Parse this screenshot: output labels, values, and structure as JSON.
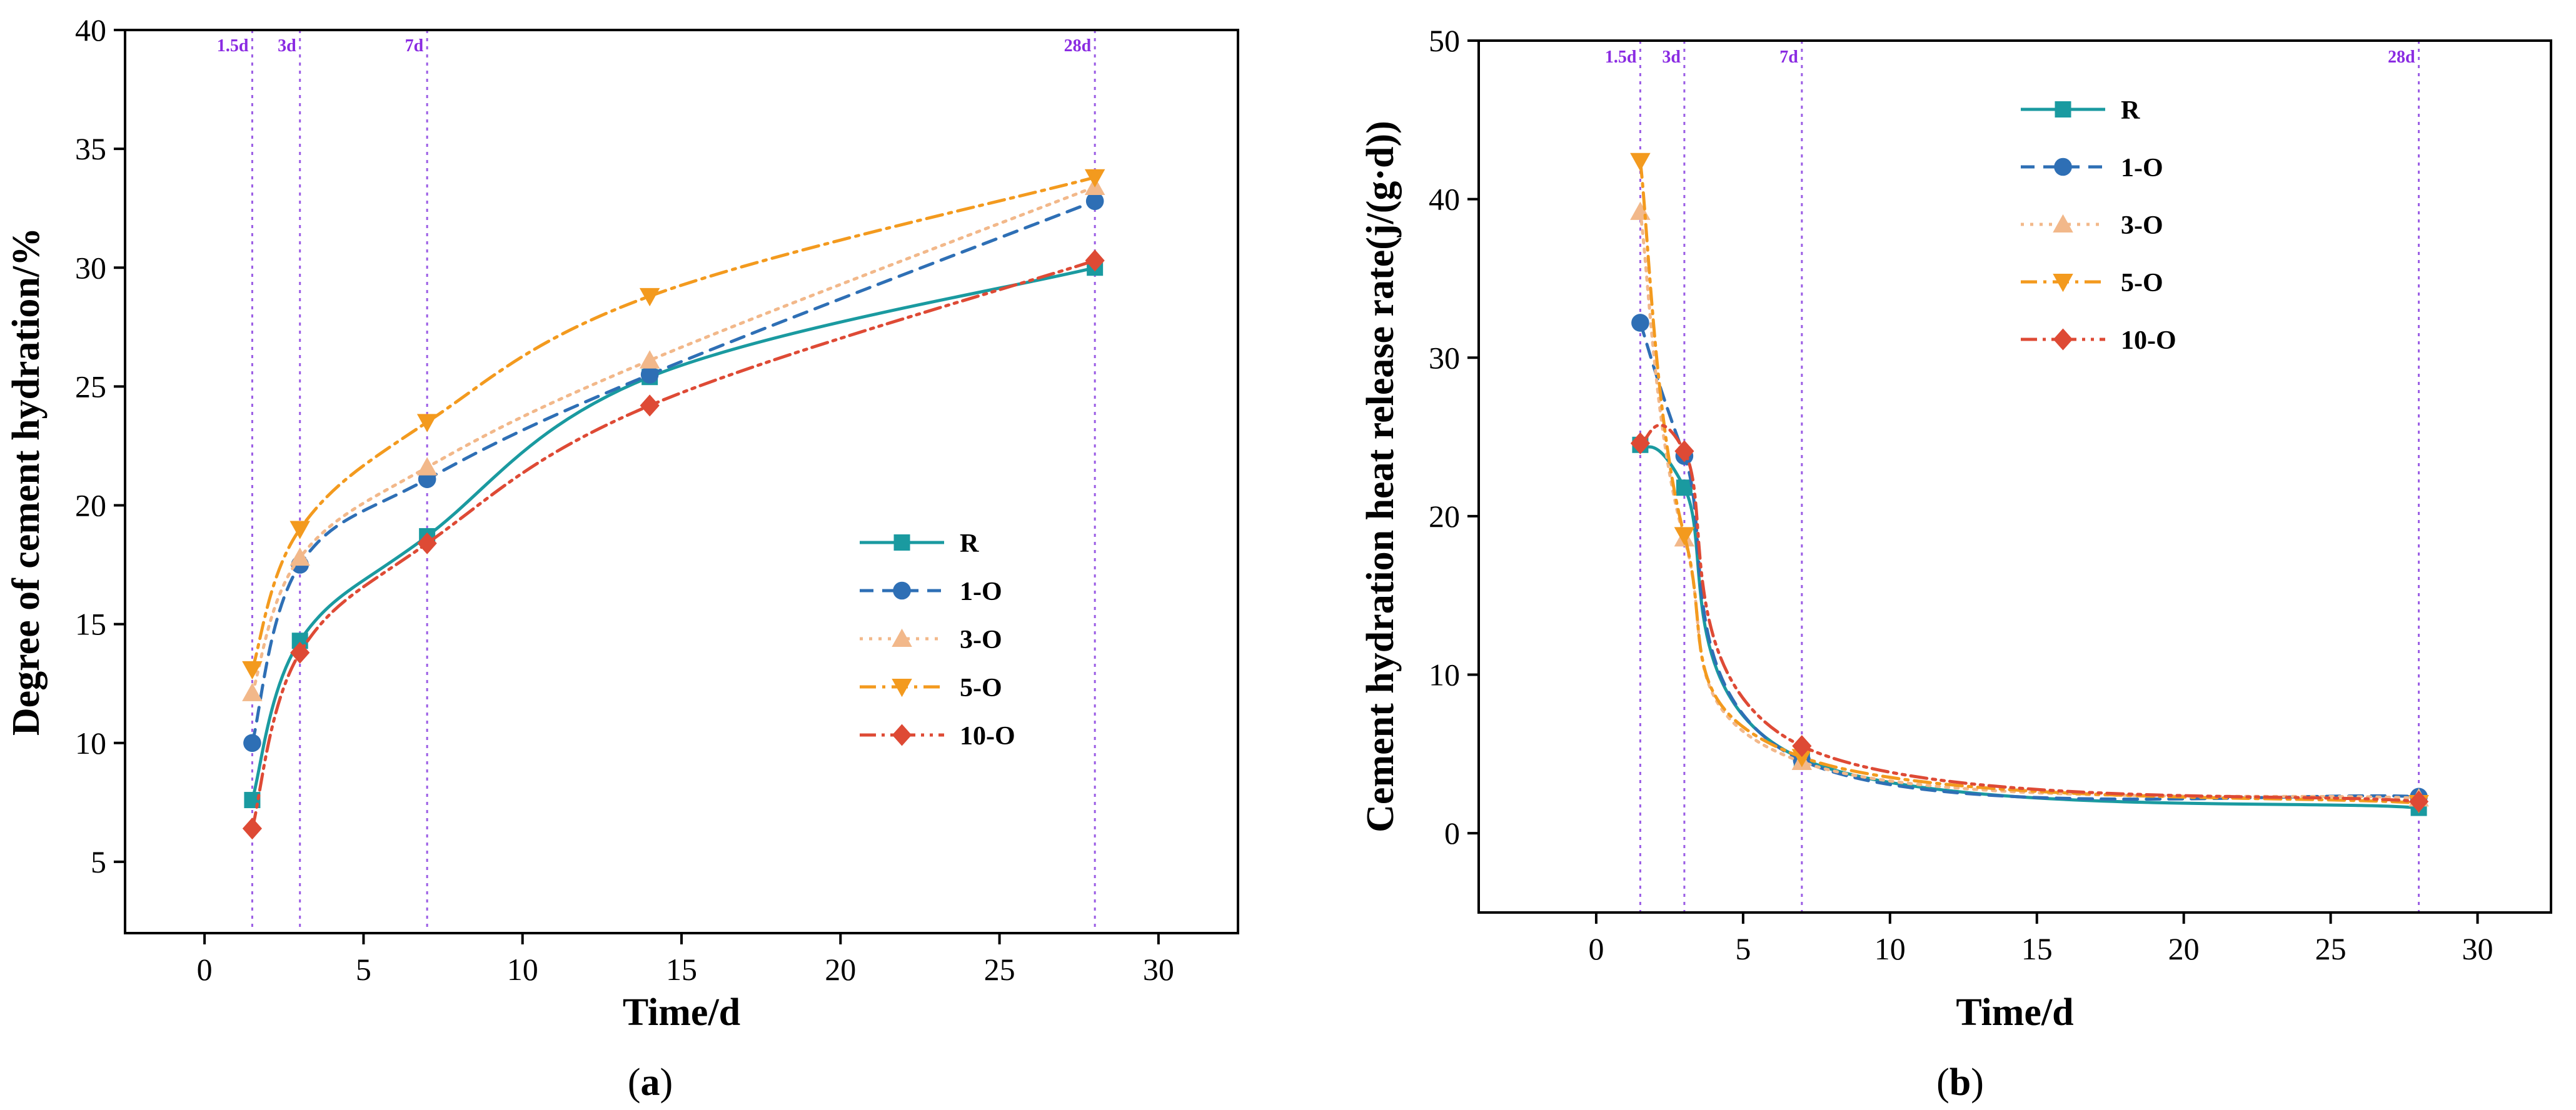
{
  "chart_data": [
    {
      "type": "line",
      "panel_label": "(a)",
      "panel_letter": "a",
      "title": "",
      "xlabel": "Time/d",
      "ylabel": "Degree of cement hydration/%",
      "xlim": [
        -2.5,
        32.5
      ],
      "ylim": [
        2,
        40
      ],
      "xticks": [
        0,
        5,
        10,
        15,
        20,
        25,
        30
      ],
      "yticks": [
        5,
        10,
        15,
        20,
        25,
        30,
        35,
        40
      ],
      "reference_lines": [
        {
          "x": 1.5,
          "label": "1.5d"
        },
        {
          "x": 3,
          "label": "3d"
        },
        {
          "x": 7,
          "label": "7d"
        },
        {
          "x": 28,
          "label": "28d"
        }
      ],
      "legend_position": "center-right",
      "x": [
        1.5,
        3,
        7,
        14,
        28
      ],
      "series": [
        {
          "name": "R",
          "color": "#1a9aa0",
          "marker": "square",
          "dash": "solid",
          "values": [
            7.6,
            14.3,
            18.7,
            25.4,
            30.0
          ]
        },
        {
          "name": "1-O",
          "color": "#2e6fb5",
          "marker": "circle",
          "dash": "dashed",
          "values": [
            10.0,
            17.5,
            21.1,
            25.5,
            32.8
          ]
        },
        {
          "name": "3-O",
          "color": "#f2b88a",
          "marker": "triangle-up",
          "dash": "dotted",
          "values": [
            12.1,
            17.8,
            21.6,
            26.1,
            33.4
          ]
        },
        {
          "name": "5-O",
          "color": "#f39a1e",
          "marker": "triangle-down",
          "dash": "dashdot",
          "values": [
            13.1,
            19.0,
            23.5,
            28.8,
            33.8
          ]
        },
        {
          "name": "10-O",
          "color": "#de4a35",
          "marker": "diamond",
          "dash": "dashdotdot",
          "values": [
            6.4,
            13.8,
            18.4,
            24.2,
            30.3
          ]
        }
      ]
    },
    {
      "type": "line",
      "panel_label": "(b)",
      "panel_letter": "b",
      "title": "",
      "xlabel": "Time/d",
      "ylabel": "Cement hydration heat release rate(j/(g·d))",
      "xlim": [
        -4,
        32.5
      ],
      "ylim": [
        -5,
        50
      ],
      "xticks": [
        0,
        5,
        10,
        15,
        20,
        25,
        30
      ],
      "yticks": [
        0,
        10,
        20,
        30,
        40,
        50
      ],
      "reference_lines": [
        {
          "x": 1.5,
          "label": "1.5d"
        },
        {
          "x": 3,
          "label": "3d"
        },
        {
          "x": 7,
          "label": "7d"
        },
        {
          "x": 28,
          "label": "28d"
        }
      ],
      "legend_position": "top-center",
      "x": [
        1.5,
        3,
        7,
        28
      ],
      "series": [
        {
          "name": "R",
          "color": "#1a9aa0",
          "marker": "square",
          "dash": "solid",
          "values": [
            24.5,
            21.8,
            4.7,
            1.6
          ]
        },
        {
          "name": "1-O",
          "color": "#2e6fb5",
          "marker": "circle",
          "dash": "dashed",
          "values": [
            32.2,
            23.8,
            4.6,
            2.3
          ]
        },
        {
          "name": "3-O",
          "color": "#f2b88a",
          "marker": "triangle-up",
          "dash": "dotted",
          "values": [
            39.2,
            18.6,
            4.5,
            2.2
          ]
        },
        {
          "name": "5-O",
          "color": "#f39a1e",
          "marker": "triangle-down",
          "dash": "dashdot",
          "values": [
            42.4,
            18.8,
            4.8,
            1.9
          ]
        },
        {
          "name": "10-O",
          "color": "#de4a35",
          "marker": "diamond",
          "dash": "dashdotdot",
          "values": [
            24.6,
            24.1,
            5.5,
            2.0
          ]
        }
      ]
    }
  ]
}
